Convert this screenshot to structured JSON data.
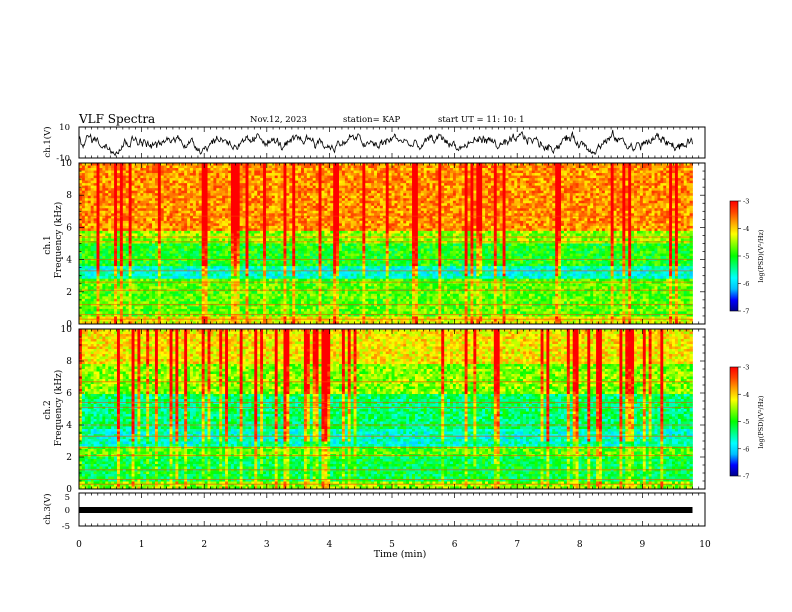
{
  "header": {
    "title": "VLF Spectra",
    "date": "Nov.12, 2023",
    "station": "station= KAP",
    "start": "start  UT =   11: 10: 1"
  },
  "chart_data": [
    {
      "type": "line",
      "panel": "ch1-waveform",
      "ylabel": "ch.1(V)",
      "ylim": [
        -10,
        10
      ],
      "yticks": [
        "10",
        "-10"
      ],
      "xlim": [
        0,
        10
      ],
      "data_extent_min": [
        0,
        9.8
      ]
    },
    {
      "type": "heatmap",
      "panel": "ch1-spectrogram",
      "ylabel_line1": "ch.1",
      "ylabel_line2": "Frequency (kHz)",
      "ylim": [
        0,
        10
      ],
      "yticks": [
        "0",
        "2",
        "4",
        "6",
        "8",
        "10"
      ],
      "xlim": [
        0,
        10
      ],
      "colorbar": {
        "label": "log(PSD)(V²/Hz)",
        "range": [
          -7,
          -3
        ],
        "ticks": [
          "-3",
          "-4",
          "-5",
          "-6",
          "-7"
        ]
      }
    },
    {
      "type": "heatmap",
      "panel": "ch2-spectrogram",
      "ylabel_line1": "ch.2",
      "ylabel_line2": "Frequency (kHz)",
      "ylim": [
        0,
        10
      ],
      "yticks": [
        "0",
        "2",
        "4",
        "6",
        "8",
        "10"
      ],
      "xlim": [
        0,
        10
      ],
      "colorbar": {
        "label": "log(PSD)(V²/Hz)",
        "range": [
          -7,
          -3
        ],
        "ticks": [
          "-3",
          "-4",
          "-5",
          "-6",
          "-7"
        ]
      }
    },
    {
      "type": "line",
      "panel": "ch3-waveform",
      "ylabel": "ch.3(V)",
      "ylim": [
        -5,
        5
      ],
      "yticks": [
        "5",
        "0",
        "-5"
      ],
      "xlim": [
        0,
        10
      ],
      "xticks": [
        "0",
        "1",
        "2",
        "3",
        "4",
        "5",
        "6",
        "7",
        "8",
        "9",
        "10"
      ],
      "xlabel": "Time  (min)",
      "level": 0
    }
  ],
  "colors": {
    "axis": "#000000",
    "colormap": [
      "#00008b",
      "#0000ff",
      "#00bfff",
      "#00ffff",
      "#00ff7f",
      "#00ff00",
      "#7fff00",
      "#ffff00",
      "#ffa500",
      "#ff4500",
      "#ff0000"
    ]
  }
}
